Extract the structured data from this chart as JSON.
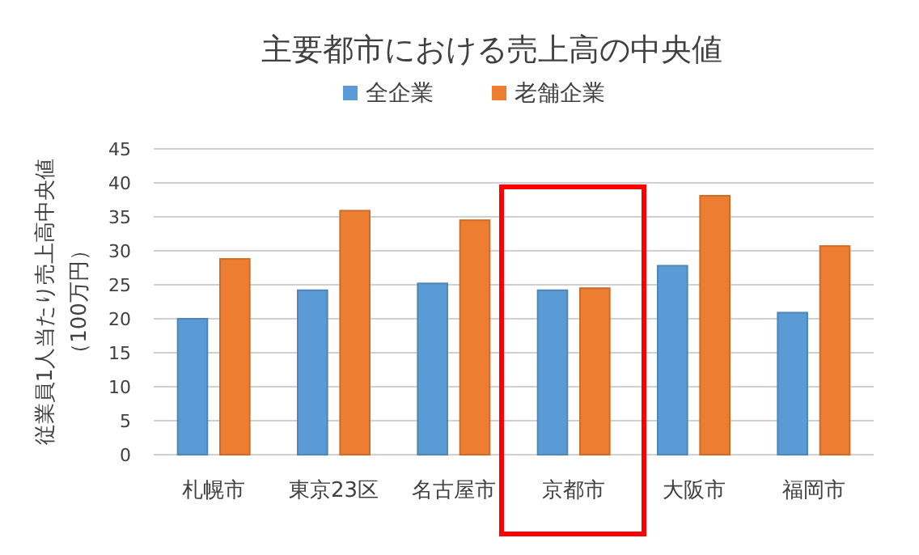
{
  "chart_data": {
    "type": "bar",
    "title": "主要都市における売上高の中央値",
    "ylabel": "従業員1人当たり売上高中央値（100万円）",
    "categories": [
      "札幌市",
      "東京23区",
      "名古屋市",
      "京都市",
      "大阪市",
      "福岡市"
    ],
    "series": [
      {
        "name": "全企業",
        "color": "#5b9bd5",
        "values": [
          20,
          24.2,
          25.2,
          24.2,
          27.8,
          20.9
        ]
      },
      {
        "name": "老舗企業",
        "color": "#ed7d31",
        "values": [
          28.8,
          35.9,
          34.5,
          24.5,
          38.1,
          30.7
        ]
      }
    ],
    "ylim": [
      0,
      45
    ],
    "yticks": [
      0,
      5,
      10,
      15,
      20,
      25,
      30,
      35,
      40,
      45
    ],
    "grid": "y",
    "legend": "top"
  }
}
